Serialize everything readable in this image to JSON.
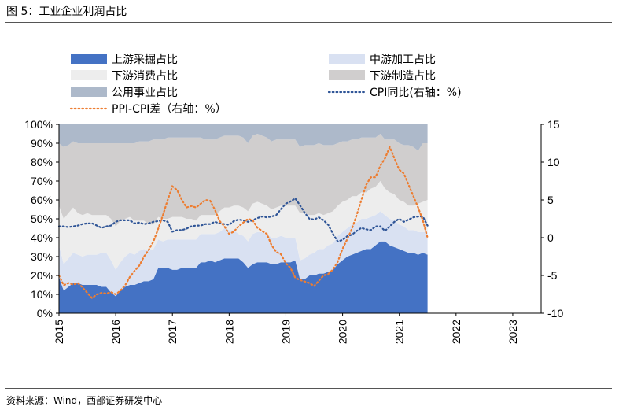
{
  "figure_title": "图 5：工业企业利润占比",
  "source_note": "资料来源：Wind，西部证券研发中心",
  "chart_data": {
    "type": "area",
    "title": "",
    "x_start": 2015.0,
    "x_step": 0.0833,
    "x_ticks": [
      "2015",
      "2016",
      "2017",
      "2018",
      "2019",
      "2020",
      "2021",
      "2022",
      "2023"
    ],
    "x_range": [
      2015,
      2023.5
    ],
    "y_left_range": [
      0,
      100
    ],
    "y_left_ticks": [
      "100%",
      "90%",
      "80%",
      "70%",
      "60%",
      "50%",
      "40%",
      "30%",
      "20%",
      "10%",
      "0%"
    ],
    "y_right_range": [
      -10,
      15
    ],
    "y_right_ticks": [
      "15",
      "10",
      "5",
      "0",
      "-5",
      "-10"
    ],
    "legend_placement": "top",
    "stack_order": [
      "upstream_mining",
      "midstream_processing",
      "downstream_consumer",
      "downstream_manufacturing",
      "utilities"
    ],
    "series": [
      {
        "key": "upstream_mining",
        "name": "上游采掘占比",
        "axis": "left",
        "kind": "area",
        "color": "#4472C4",
        "values": [
          19,
          12,
          14,
          16,
          16,
          15,
          15,
          15,
          15,
          14,
          14,
          11,
          9,
          12,
          14,
          15,
          15,
          16,
          17,
          17,
          18,
          24,
          24,
          24,
          23,
          23,
          24,
          24,
          24,
          24,
          27,
          27,
          28,
          27,
          28,
          29,
          29,
          29,
          29,
          27,
          24,
          26,
          27,
          27,
          27,
          26,
          26,
          27,
          27,
          27,
          28,
          18,
          18,
          20,
          20,
          21,
          21,
          22,
          23,
          26,
          28,
          30,
          31,
          32,
          33,
          34,
          34,
          36,
          38,
          38,
          36,
          35,
          34,
          33,
          32,
          32,
          31,
          32,
          31
        ]
      },
      {
        "key": "midstream_processing",
        "name": "中游加工占比",
        "axis": "left",
        "kind": "area",
        "color": "#D9E1F2",
        "values": [
          17,
          14,
          15,
          16,
          15,
          15,
          16,
          16,
          16,
          18,
          18,
          17,
          14,
          15,
          16,
          17,
          16,
          17,
          17,
          16,
          16,
          15,
          14,
          15,
          16,
          16,
          15,
          15,
          15,
          15,
          15,
          15,
          14,
          15,
          15,
          16,
          15,
          15,
          13,
          14,
          14,
          16,
          16,
          16,
          15,
          14,
          14,
          14,
          13,
          13,
          12,
          10,
          11,
          11,
          12,
          13,
          13,
          14,
          14,
          15,
          15,
          15,
          16,
          16,
          17,
          16,
          17,
          16,
          16,
          14,
          14,
          14,
          13,
          13,
          12,
          12,
          12,
          11,
          12
        ]
      },
      {
        "key": "downstream_consumer",
        "name": "下游消费占比",
        "axis": "left",
        "kind": "area",
        "color": "#EDEDED",
        "values": [
          21,
          24,
          24,
          24,
          22,
          22,
          22,
          21,
          21,
          20,
          20,
          22,
          23,
          22,
          20,
          19,
          18,
          16,
          15,
          14,
          13,
          12,
          12,
          11,
          12,
          12,
          12,
          11,
          11,
          10,
          10,
          10,
          10,
          10,
          11,
          11,
          12,
          13,
          15,
          15,
          16,
          16,
          16,
          15,
          15,
          15,
          16,
          16,
          17,
          17,
          17,
          25,
          24,
          21,
          20,
          19,
          18,
          17,
          17,
          16,
          16,
          15,
          15,
          14,
          14,
          14,
          15,
          15,
          16,
          14,
          14,
          14,
          13,
          13,
          13,
          13,
          15,
          16,
          17
        ]
      },
      {
        "key": "downstream_manufacturing",
        "name": "下游制造占比",
        "axis": "left",
        "kind": "area",
        "color": "#D0CECE",
        "values": [
          33,
          38,
          36,
          35,
          37,
          38,
          37,
          38,
          38,
          38,
          38,
          40,
          44,
          41,
          40,
          39,
          41,
          42,
          42,
          44,
          45,
          41,
          42,
          43,
          42,
          42,
          42,
          43,
          43,
          44,
          41,
          40,
          40,
          40,
          39,
          38,
          38,
          37,
          37,
          37,
          36,
          36,
          36,
          36,
          36,
          36,
          36,
          35,
          35,
          35,
          35,
          35,
          36,
          37,
          37,
          37,
          37,
          36,
          35,
          33,
          32,
          31,
          30,
          30,
          29,
          29,
          27,
          26,
          25,
          26,
          28,
          29,
          30,
          30,
          32,
          31,
          28,
          31,
          30
        ]
      },
      {
        "key": "utilities",
        "name": "公用事业占比",
        "axis": "left",
        "kind": "area",
        "color": "#ADB9CA",
        "values": [
          10,
          12,
          11,
          9,
          10,
          10,
          10,
          10,
          10,
          10,
          10,
          10,
          10,
          10,
          10,
          10,
          10,
          9,
          9,
          9,
          8,
          8,
          8,
          7,
          7,
          7,
          7,
          7,
          7,
          7,
          7,
          8,
          8,
          8,
          7,
          6,
          6,
          6,
          6,
          7,
          10,
          6,
          5,
          6,
          7,
          9,
          8,
          8,
          8,
          8,
          8,
          12,
          11,
          11,
          11,
          10,
          11,
          11,
          11,
          10,
          9,
          9,
          8,
          8,
          7,
          7,
          7,
          7,
          5,
          8,
          8,
          8,
          10,
          11,
          11,
          12,
          14,
          10,
          10
        ]
      },
      {
        "key": "cpi_yoy",
        "name": "CPI同比(右轴：%)",
        "axis": "right",
        "kind": "line",
        "style": "dotted",
        "color": "#2F5597",
        "values": [
          1.5,
          1.5,
          1.4,
          1.5,
          1.6,
          1.8,
          1.9,
          1.9,
          1.6,
          1.3,
          1.5,
          1.6,
          2.1,
          2.3,
          2.3,
          2.3,
          1.9,
          2.0,
          1.8,
          1.9,
          2.1,
          2.2,
          2.3,
          2.1,
          0.8,
          1.0,
          1.0,
          1.2,
          1.5,
          1.6,
          1.6,
          1.8,
          1.8,
          2.1,
          1.9,
          1.8,
          1.7,
          2.2,
          2.4,
          2.3,
          2.1,
          2.3,
          2.6,
          2.8,
          2.7,
          2.8,
          3.0,
          3.8,
          4.5,
          4.8,
          5.2,
          4.3,
          3.3,
          2.5,
          2.4,
          2.7,
          2.3,
          1.7,
          0.5,
          -0.5,
          -0.3,
          0.2,
          0.4,
          0.9,
          1.3,
          1.1,
          1.0,
          1.5,
          1.5,
          0.9,
          1.5,
          2.1,
          2.5,
          2.1,
          2.4,
          2.7,
          2.8,
          2.8,
          1.6
        ]
      },
      {
        "key": "ppi_cpi_spread",
        "name": "PPI-CPI差（右轴：%）",
        "axis": "right",
        "kind": "line",
        "style": "dotted",
        "color": "#ED7D31",
        "values": [
          -5.0,
          -6.3,
          -6.0,
          -6.2,
          -6.0,
          -6.6,
          -7.3,
          -8.0,
          -7.5,
          -7.3,
          -7.4,
          -7.2,
          -7.5,
          -7.0,
          -6.3,
          -5.2,
          -4.4,
          -3.7,
          -2.5,
          -1.6,
          -0.5,
          1.2,
          3.0,
          5.0,
          6.8,
          6.3,
          5.0,
          4.0,
          4.2,
          4.0,
          4.5,
          5.0,
          4.9,
          3.7,
          2.2,
          1.5,
          0.5,
          0.8,
          1.5,
          2.0,
          2.5,
          2.3,
          1.3,
          0.9,
          0.5,
          -1.0,
          -1.9,
          -2.2,
          -3.4,
          -4.0,
          -5.3,
          -5.6,
          -5.8,
          -6.0,
          -6.4,
          -5.7,
          -5.0,
          -4.8,
          -4.2,
          -3.2,
          -1.5,
          -0.2,
          1.2,
          3.0,
          5.0,
          7.0,
          8.0,
          8.0,
          9.5,
          10.5,
          12.0,
          10.5,
          9.0,
          8.5,
          7.0,
          5.5,
          4.0,
          2.3,
          0.0
        ]
      }
    ]
  }
}
